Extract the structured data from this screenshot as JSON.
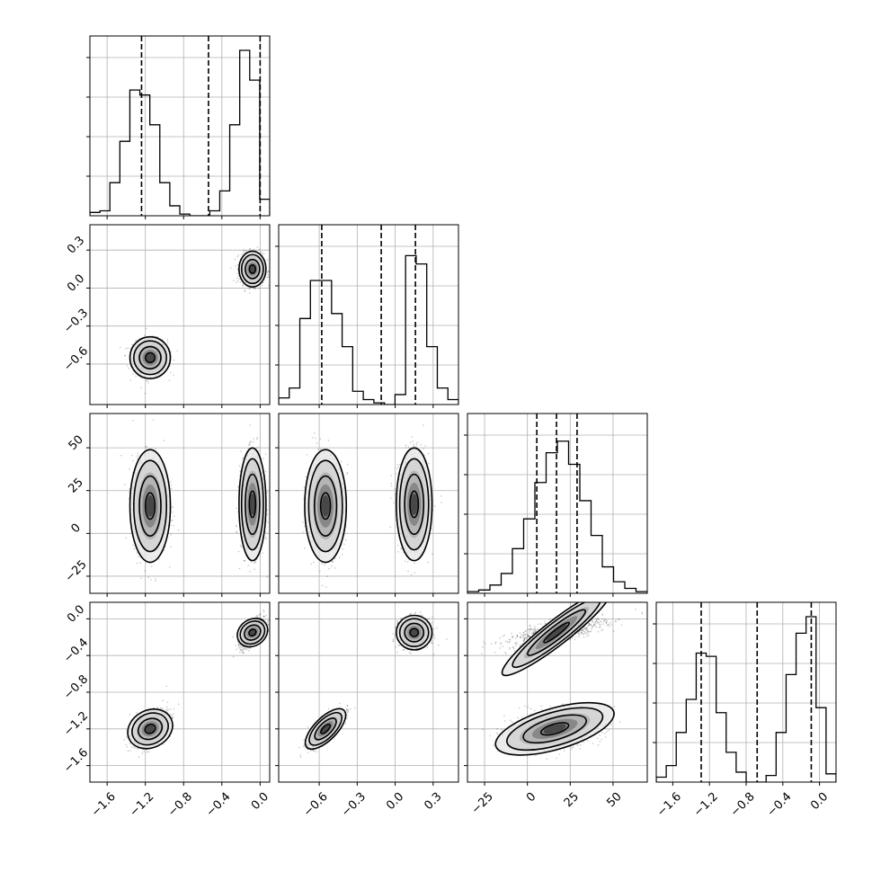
{
  "chart_data": {
    "type": "corner",
    "n_params": 4,
    "axes_ticks": [
      {
        "range": [
          -1.78,
          0.1
        ],
        "ticks": [
          -1.6,
          -1.2,
          -0.8,
          -0.4,
          0.0
        ],
        "labels": [
          "−1.6",
          "−1.2",
          "−0.8",
          "−0.4",
          "0.0"
        ]
      },
      {
        "range": [
          -0.92,
          0.5
        ],
        "ticks": [
          -0.6,
          -0.3,
          0.0,
          0.3
        ],
        "labels": [
          "−0.6",
          "−0.3",
          "0.0",
          "0.3"
        ]
      },
      {
        "range": [
          -35,
          70
        ],
        "ticks": [
          -25,
          0,
          25,
          50
        ],
        "labels": [
          "−25",
          "0",
          "25",
          "50"
        ]
      },
      {
        "range": [
          -1.78,
          0.18
        ],
        "ticks": [
          -1.6,
          -1.2,
          -0.8,
          -0.4,
          0.0
        ],
        "labels": [
          "−1.6",
          "−1.2",
          "−0.8",
          "−0.4",
          "0.0"
        ]
      }
    ],
    "histograms": [
      {
        "param": 0,
        "bin_range": [
          -1.78,
          0.1
        ],
        "counts": [
          0.02,
          0.03,
          0.2,
          0.45,
          0.76,
          0.73,
          0.55,
          0.2,
          0.06,
          0.01,
          0.0,
          0.0,
          0.03,
          0.15,
          0.55,
          1.0,
          0.82,
          0.1
        ],
        "quantiles": [
          -1.24,
          -0.54,
          0.0
        ]
      },
      {
        "param": 1,
        "bin_range": [
          -0.92,
          0.5
        ],
        "counts": [
          0.04,
          0.1,
          0.52,
          0.75,
          0.75,
          0.55,
          0.35,
          0.08,
          0.03,
          0.01,
          0.0,
          0.06,
          0.9,
          0.85,
          0.35,
          0.1,
          0.03
        ],
        "quantiles": [
          -0.58,
          -0.11,
          0.16
        ]
      },
      {
        "param": 2,
        "bin_range": [
          -35,
          70
        ],
        "counts": [
          0.01,
          0.02,
          0.05,
          0.12,
          0.27,
          0.45,
          0.67,
          0.85,
          0.92,
          0.78,
          0.56,
          0.35,
          0.16,
          0.07,
          0.03,
          0.01
        ],
        "quantiles": [
          5.5,
          17,
          29
        ]
      },
      {
        "param": 3,
        "bin_range": [
          -1.78,
          0.18
        ],
        "counts": [
          0.03,
          0.1,
          0.3,
          0.5,
          0.78,
          0.76,
          0.42,
          0.18,
          0.06,
          0.0,
          0.0,
          0.04,
          0.3,
          0.65,
          0.9,
          1.0,
          0.45,
          0.05
        ],
        "quantiles": [
          -1.29,
          -0.68,
          -0.09
        ]
      }
    ],
    "clusters": [
      {
        "mean": [
          -1.15,
          -0.55,
          16,
          -1.2
        ],
        "sd": [
          0.09,
          0.07,
          14,
          0.1
        ],
        "corr": {
          "0-3": 0.5,
          "1-3": 0.85,
          "2-3": 0.3
        }
      },
      {
        "mean": [
          -0.08,
          0.15,
          17,
          -0.15
        ],
        "sd": [
          0.06,
          0.06,
          14,
          0.08
        ],
        "corr": {
          "0-3": 0.65,
          "1-3": 0.0,
          "2-3": 0.7
        }
      }
    ]
  }
}
